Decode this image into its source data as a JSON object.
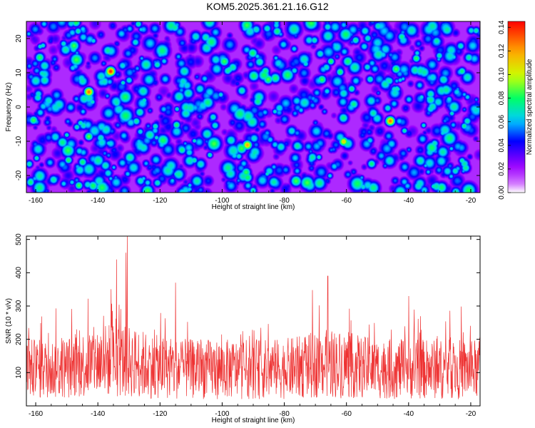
{
  "title": "KOM5.2025.361.21.16.G12",
  "chart_data": [
    {
      "type": "heatmap",
      "xlabel": "Height of straight line (km)",
      "ylabel": "Frequency (Hz)",
      "xlim": [
        -163,
        -17
      ],
      "ylim": [
        -25,
        25
      ],
      "xticks": [
        -160,
        -140,
        -120,
        -100,
        -80,
        -60,
        -40,
        -20
      ],
      "yticks": [
        -20,
        -10,
        0,
        10,
        20
      ],
      "colorbar": {
        "label": "Normalized spectral amplitude",
        "range": [
          0,
          0.145
        ],
        "ticks": [
          "0.00",
          "0.02",
          "0.04",
          "0.06",
          "0.08",
          "0.10",
          "0.12",
          "0.14"
        ],
        "colors": [
          "#ffffff",
          "#cc66ff",
          "#9900ff",
          "#0000ff",
          "#00ccff",
          "#00ff66",
          "#ccff00",
          "#ffaa00",
          "#ff0000"
        ]
      },
      "peaks": [
        {
          "x": -136,
          "y": 10.5,
          "v": 0.14
        },
        {
          "x": -143,
          "y": 4.5,
          "v": 0.13
        },
        {
          "x": -46,
          "y": -4.0,
          "v": 0.13
        },
        {
          "x": -92,
          "y": -11.0,
          "v": 0.12
        },
        {
          "x": -61,
          "y": -10.0,
          "v": 0.11
        },
        {
          "x": -143,
          "y": -8.5,
          "v": 0.09
        },
        {
          "x": -52,
          "y": -16.5,
          "v": 0.08
        },
        {
          "x": -145,
          "y": -16.0,
          "v": 0.08
        },
        {
          "x": -128,
          "y": 19.0,
          "v": 0.07
        }
      ]
    },
    {
      "type": "line",
      "xlabel": "Height of straight line (km)",
      "ylabel": "SNR (10 * v/v)",
      "xlim": [
        -163,
        -17
      ],
      "ylim": [
        0,
        510
      ],
      "xticks": [
        -160,
        -140,
        -120,
        -100,
        -80,
        -60,
        -40,
        -20
      ],
      "yticks": [
        100,
        200,
        300,
        400,
        500
      ],
      "color": "#ee3333",
      "series_stats": {
        "baseline": 135,
        "max": 510,
        "max_at": -130.5
      },
      "notable_peaks": [
        {
          "x": -130.5,
          "y": 510
        },
        {
          "x": -131,
          "y": 460
        },
        {
          "x": -134,
          "y": 440
        },
        {
          "x": -66,
          "y": 390
        },
        {
          "x": -115,
          "y": 370
        },
        {
          "x": -40,
          "y": 330
        }
      ]
    }
  ]
}
